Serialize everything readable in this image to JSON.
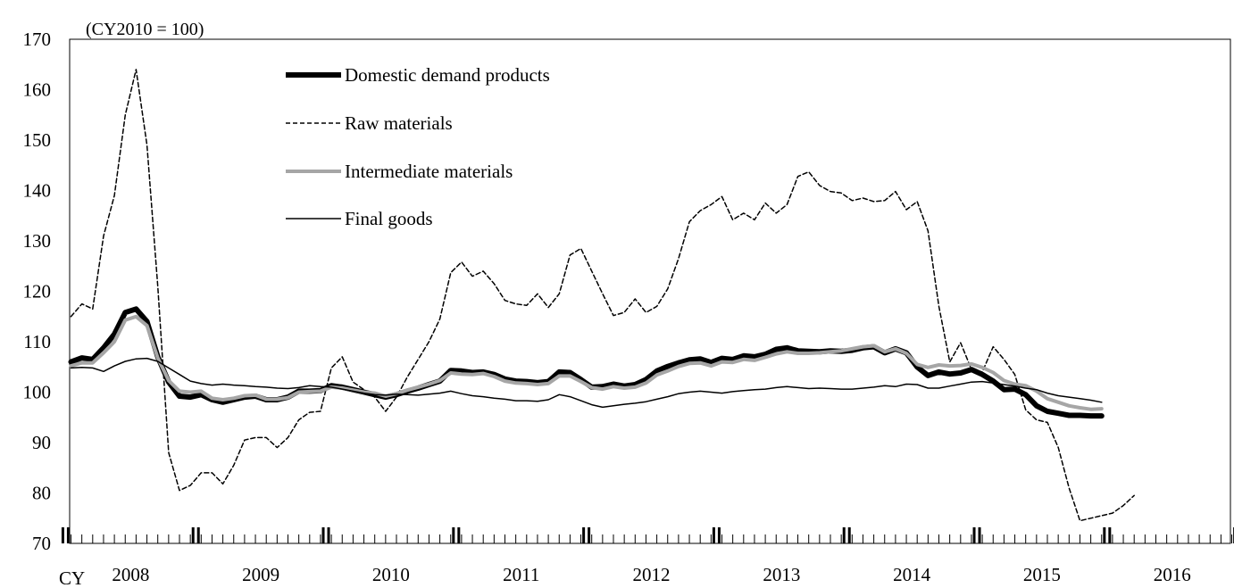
{
  "chart_data": {
    "type": "line",
    "unit_label": "(CY2010 = 100)",
    "ylim": [
      70,
      170
    ],
    "yticks": [
      "170",
      "160",
      "150",
      "140",
      "130",
      "120",
      "110",
      "100",
      "90",
      "80",
      "70"
    ],
    "x_prefix": "CY",
    "years": [
      "2008",
      "2009",
      "2010",
      "2011",
      "2012",
      "2013",
      "2014",
      "2015",
      "2016"
    ],
    "x_start": "2008-01",
    "x_end": "2016-12",
    "legend_position": "top-left",
    "series": [
      {
        "name": "Domestic demand products",
        "style": "thick-black",
        "color": "#000000",
        "values": [
          106.0,
          106.8,
          106.5,
          108.8,
          111.5,
          115.8,
          116.5,
          114.0,
          107.0,
          102.0,
          99.2,
          99.0,
          99.5,
          98.5,
          98.0,
          98.5,
          99.0,
          99.2,
          98.5,
          98.5,
          99.0,
          100.2,
          100.2,
          100.3,
          101.3,
          101.0,
          100.5,
          100.0,
          99.5,
          99.0,
          99.5,
          100.2,
          100.8,
          101.5,
          102.2,
          104.3,
          104.2,
          103.9,
          104.0,
          103.5,
          102.6,
          102.2,
          102.1,
          101.9,
          102.1,
          104.0,
          103.9,
          102.5,
          101.0,
          101.1,
          101.6,
          101.2,
          101.5,
          102.5,
          104.2,
          105.1,
          105.8,
          106.4,
          106.6,
          105.9,
          106.7,
          106.5,
          107.2,
          107.0,
          107.5,
          108.5,
          108.8,
          108.2,
          108.1,
          108.0,
          108.2,
          108.1,
          108.3,
          108.8,
          109.0,
          107.8,
          108.6,
          107.8,
          105.0,
          103.3,
          104.0,
          103.6,
          103.8,
          104.5,
          103.5,
          102.2,
          100.5,
          100.6,
          99.5,
          97.3,
          96.2,
          95.8,
          95.4,
          95.4,
          95.3,
          95.3
        ]
      },
      {
        "name": "Raw materials",
        "style": "dashed",
        "color": "#000000",
        "values": [
          115.0,
          117.5,
          116.5,
          131.0,
          139.0,
          155.0,
          164.0,
          149.0,
          121.0,
          88.0,
          80.5,
          81.5,
          84.0,
          84.0,
          81.8,
          85.5,
          90.5,
          91.0,
          91.0,
          89.0,
          91.0,
          94.5,
          96.0,
          96.2,
          104.8,
          107.0,
          102.0,
          100.5,
          99.0,
          96.2,
          99.0,
          103.0,
          106.5,
          110.0,
          114.5,
          123.7,
          125.8,
          123.0,
          124.0,
          121.5,
          118.2,
          117.5,
          117.2,
          119.5,
          116.8,
          119.5,
          127.2,
          128.5,
          124.0,
          119.5,
          115.2,
          115.8,
          118.5,
          115.8,
          117.0,
          120.5,
          126.5,
          133.8,
          136.0,
          137.2,
          138.8,
          134.2,
          135.5,
          134.2,
          137.5,
          135.5,
          137.2,
          142.8,
          143.7,
          141.0,
          139.8,
          139.5,
          138.0,
          138.5,
          137.8,
          138.0,
          139.8,
          136.2,
          137.8,
          132.0,
          117.0,
          106.0,
          109.8,
          104.5,
          104.0,
          109.0,
          106.5,
          103.5,
          96.5,
          94.5,
          94.0,
          89.0,
          81.0,
          74.5,
          75.0,
          75.5,
          76.0,
          77.5,
          79.5
        ]
      },
      {
        "name": "Intermediate materials",
        "style": "thick-gray",
        "color": "#a6a6a6",
        "values": [
          105.2,
          105.8,
          105.8,
          107.8,
          110.0,
          114.3,
          115.0,
          113.2,
          106.8,
          102.3,
          100.2,
          100.0,
          100.2,
          98.8,
          98.5,
          98.8,
          99.3,
          99.4,
          98.6,
          98.6,
          98.9,
          100.0,
          100.1,
          100.2,
          101.0,
          100.8,
          100.4,
          100.0,
          99.8,
          99.2,
          99.7,
          100.4,
          101.0,
          101.6,
          102.3,
          103.8,
          103.6,
          103.5,
          103.7,
          103.1,
          102.2,
          101.8,
          101.7,
          101.5,
          101.7,
          103.2,
          103.2,
          102.1,
          100.9,
          100.6,
          101.1,
          100.8,
          101.0,
          101.8,
          103.4,
          104.2,
          105.1,
          105.7,
          105.8,
          105.2,
          106.0,
          105.9,
          106.5,
          106.3,
          106.9,
          107.6,
          108.0,
          107.7,
          107.7,
          107.8,
          108.0,
          108.2,
          108.6,
          109.0,
          109.2,
          108.0,
          108.6,
          107.7,
          105.5,
          104.9,
          105.4,
          105.2,
          105.3,
          105.6,
          104.9,
          103.9,
          102.3,
          101.6,
          101.3,
          100.2,
          98.7,
          98.0,
          97.3,
          96.9,
          96.6,
          96.7
        ]
      },
      {
        "name": "Final goods",
        "style": "thin-black",
        "color": "#000000",
        "values": [
          104.8,
          104.9,
          104.8,
          104.1,
          105.2,
          106.1,
          106.6,
          106.7,
          106.1,
          104.8,
          103.5,
          102.2,
          101.7,
          101.4,
          101.6,
          101.4,
          101.3,
          101.1,
          101.0,
          100.8,
          100.7,
          100.9,
          101.3,
          101.1,
          101.0,
          100.6,
          100.2,
          99.8,
          99.5,
          99.4,
          99.6,
          99.5,
          99.4,
          99.6,
          99.8,
          100.2,
          99.7,
          99.3,
          99.1,
          98.8,
          98.6,
          98.3,
          98.3,
          98.2,
          98.5,
          99.5,
          99.1,
          98.3,
          97.5,
          97.0,
          97.3,
          97.6,
          97.8,
          98.1,
          98.6,
          99.1,
          99.7,
          100.0,
          100.2,
          100.0,
          99.8,
          100.1,
          100.3,
          100.5,
          100.6,
          100.9,
          101.1,
          100.9,
          100.7,
          100.8,
          100.7,
          100.6,
          100.6,
          100.8,
          101.0,
          101.3,
          101.1,
          101.6,
          101.5,
          100.8,
          100.8,
          101.2,
          101.6,
          102.0,
          102.1,
          101.8,
          101.5,
          101.2,
          100.8,
          100.5,
          99.8,
          99.3,
          99.0,
          98.7,
          98.4,
          98.0
        ]
      }
    ]
  }
}
